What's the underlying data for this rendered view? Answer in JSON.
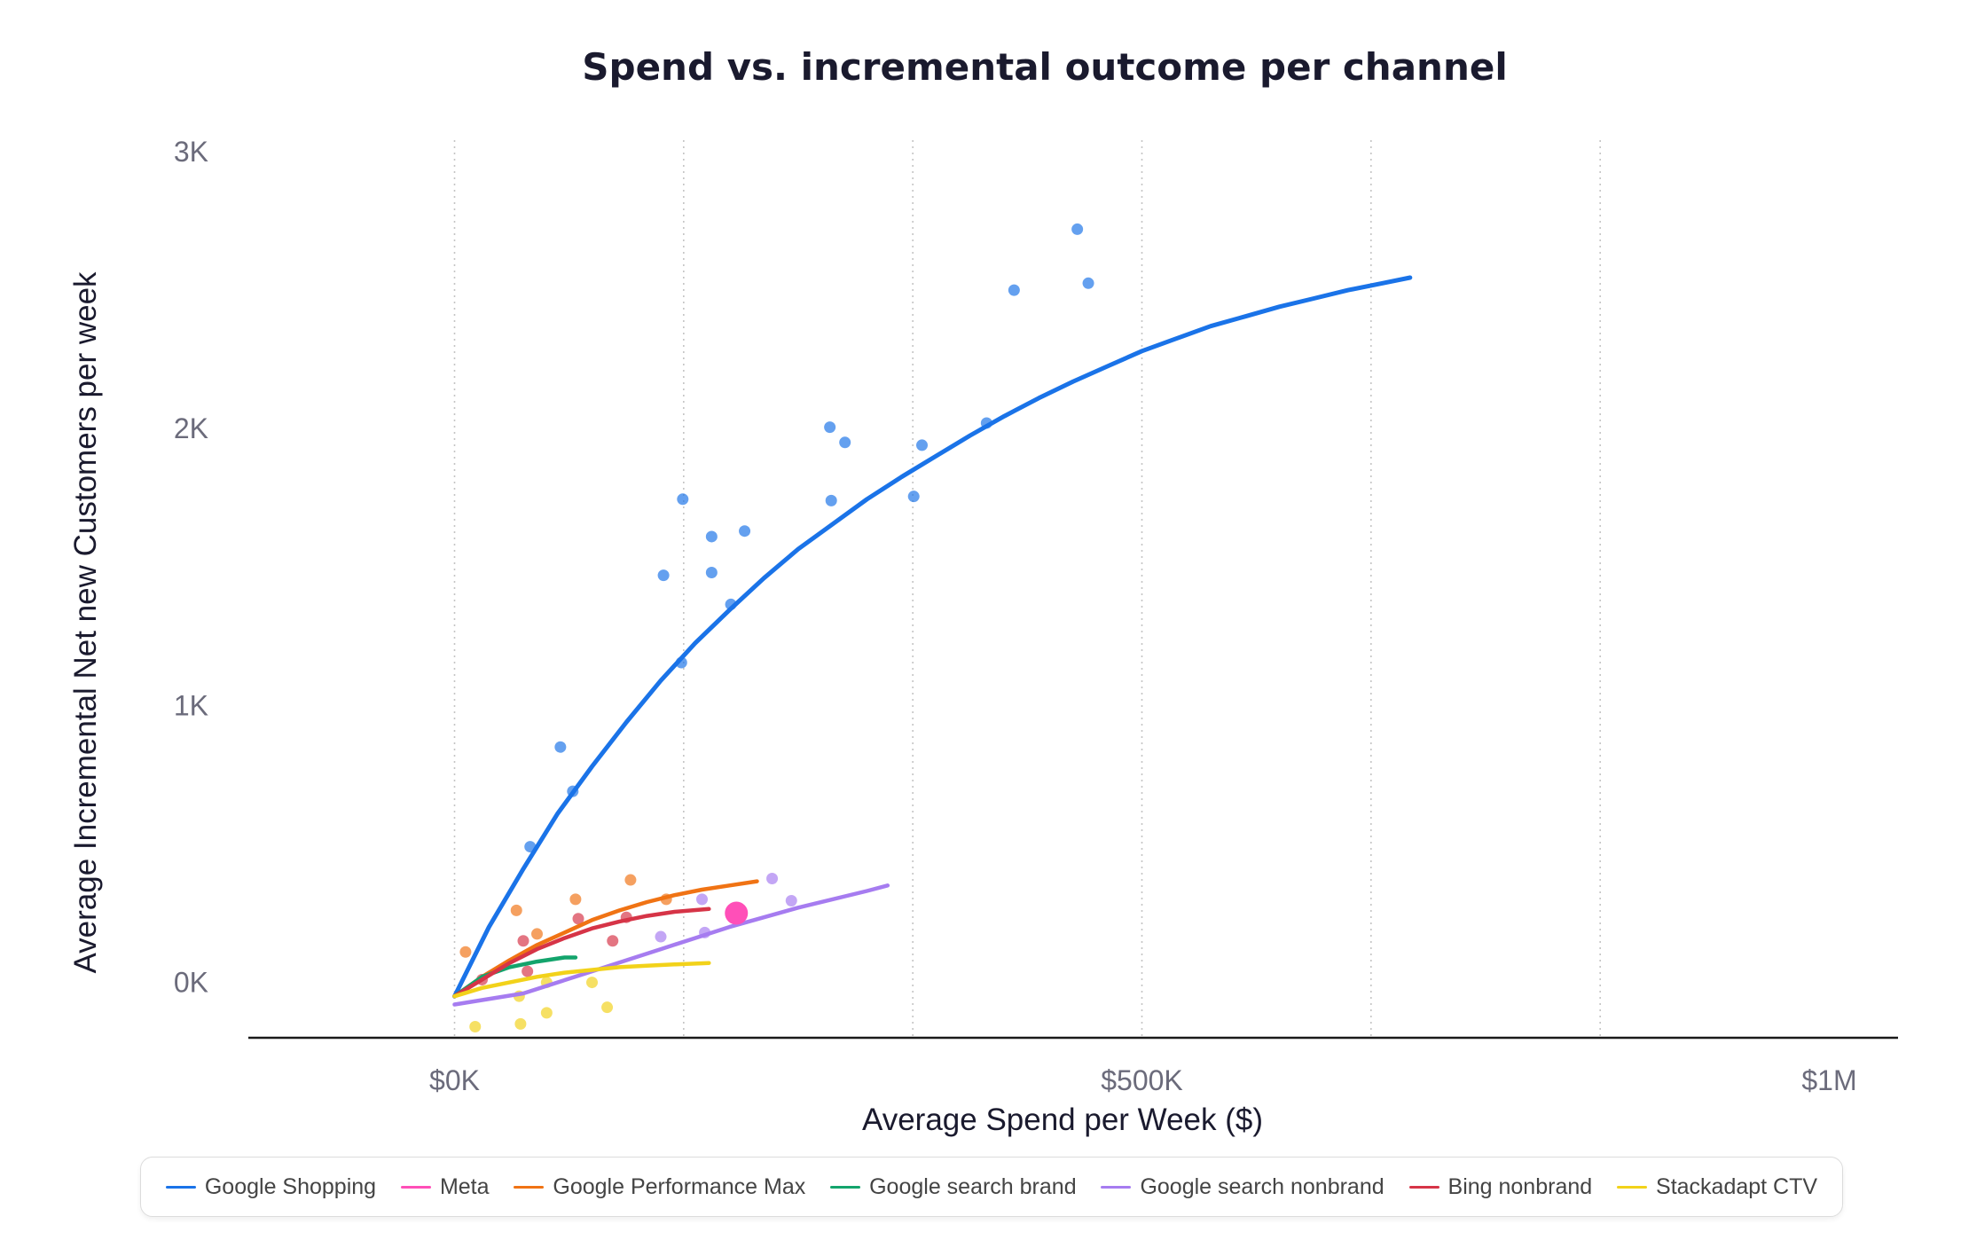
{
  "chart_data": {
    "type": "scatter",
    "title": "Spend vs. incremental outcome per channel",
    "xlabel": "Average Spend per Week ($)",
    "ylabel": "Average Incremental Net new Customers per week",
    "xlim": [
      -150000,
      1050000
    ],
    "ylim": [
      -200,
      3000
    ],
    "x_ticks": [
      {
        "value": 0,
        "label": "$0K"
      },
      {
        "value": 500000,
        "label": "$500K"
      },
      {
        "value": 1000000,
        "label": "$1M"
      }
    ],
    "y_ticks": [
      {
        "value": 0,
        "label": "0K"
      },
      {
        "value": 1000,
        "label": "1K"
      },
      {
        "value": 2000,
        "label": "2K"
      },
      {
        "value": 3000,
        "label": "3K"
      }
    ],
    "x_gridlines": [
      0,
      166667,
      333333,
      500000,
      666667,
      833333
    ],
    "grid": "vertical dotted",
    "legend_position": "bottom",
    "series": [
      {
        "name": "Google Shopping",
        "color": "#1a73e8",
        "curve": [
          [
            0,
            -50
          ],
          [
            25000,
            200
          ],
          [
            50000,
            410
          ],
          [
            75000,
            610
          ],
          [
            100000,
            780
          ],
          [
            125000,
            940
          ],
          [
            150000,
            1090
          ],
          [
            175000,
            1225
          ],
          [
            200000,
            1345
          ],
          [
            225000,
            1460
          ],
          [
            250000,
            1565
          ],
          [
            275000,
            1655
          ],
          [
            300000,
            1745
          ],
          [
            325000,
            1825
          ],
          [
            350000,
            1900
          ],
          [
            375000,
            1975
          ],
          [
            400000,
            2045
          ],
          [
            425000,
            2110
          ],
          [
            450000,
            2170
          ],
          [
            475000,
            2225
          ],
          [
            500000,
            2280
          ],
          [
            525000,
            2325
          ],
          [
            550000,
            2370
          ],
          [
            575000,
            2405
          ],
          [
            600000,
            2440
          ],
          [
            625000,
            2470
          ],
          [
            650000,
            2500
          ],
          [
            675000,
            2525
          ],
          [
            695000,
            2545
          ]
        ],
        "points": [
          [
            55000,
            490
          ],
          [
            77000,
            850
          ],
          [
            86000,
            690
          ],
          [
            152000,
            1470
          ],
          [
            165000,
            1155
          ],
          [
            166000,
            1745
          ],
          [
            187000,
            1610
          ],
          [
            187000,
            1480
          ],
          [
            201000,
            1365
          ],
          [
            211000,
            1630
          ],
          [
            273000,
            2005
          ],
          [
            274000,
            1740
          ],
          [
            284000,
            1950
          ],
          [
            334000,
            1755
          ],
          [
            340000,
            1940
          ],
          [
            387000,
            2020
          ],
          [
            407000,
            2500
          ],
          [
            453000,
            2720
          ],
          [
            461000,
            2525
          ]
        ]
      },
      {
        "name": "Meta",
        "color": "#ff4fb8",
        "curve": [],
        "points": [
          [
            205000,
            250
          ]
        ]
      },
      {
        "name": "Google Performance Max",
        "color": "#f07314",
        "curve": [
          [
            0,
            -50
          ],
          [
            20000,
            20
          ],
          [
            40000,
            80
          ],
          [
            60000,
            135
          ],
          [
            80000,
            180
          ],
          [
            100000,
            225
          ],
          [
            120000,
            260
          ],
          [
            140000,
            290
          ],
          [
            160000,
            315
          ],
          [
            180000,
            335
          ],
          [
            200000,
            350
          ],
          [
            220000,
            365
          ]
        ],
        "points": [
          [
            8000,
            110
          ],
          [
            45000,
            260
          ],
          [
            60000,
            175
          ],
          [
            88000,
            300
          ],
          [
            128000,
            370
          ],
          [
            154000,
            300
          ]
        ]
      },
      {
        "name": "Google search brand",
        "color": "#13a46c",
        "curve": [
          [
            0,
            -50
          ],
          [
            20000,
            20
          ],
          [
            40000,
            55
          ],
          [
            60000,
            75
          ],
          [
            80000,
            90
          ],
          [
            88000,
            90
          ]
        ],
        "points": []
      },
      {
        "name": "Google search nonbrand",
        "color": "#a67cf0",
        "curve": [
          [
            0,
            -80
          ],
          [
            50000,
            -40
          ],
          [
            100000,
            40
          ],
          [
            150000,
            120
          ],
          [
            200000,
            200
          ],
          [
            250000,
            270
          ],
          [
            300000,
            330
          ],
          [
            315000,
            350
          ]
        ],
        "points": [
          [
            150000,
            165
          ],
          [
            180000,
            300
          ],
          [
            182000,
            180
          ],
          [
            231000,
            375
          ],
          [
            245000,
            295
          ]
        ]
      },
      {
        "name": "Bing nonbrand",
        "color": "#d63447",
        "curve": [
          [
            0,
            -50
          ],
          [
            20000,
            10
          ],
          [
            40000,
            70
          ],
          [
            60000,
            120
          ],
          [
            80000,
            160
          ],
          [
            100000,
            195
          ],
          [
            120000,
            220
          ],
          [
            140000,
            240
          ],
          [
            160000,
            255
          ],
          [
            185000,
            265
          ]
        ],
        "points": [
          [
            20000,
            10
          ],
          [
            50000,
            150
          ],
          [
            53000,
            40
          ],
          [
            90000,
            230
          ],
          [
            115000,
            150
          ],
          [
            125000,
            235
          ]
        ]
      },
      {
        "name": "Stackadapt CTV",
        "color": "#f2d21a",
        "curve": [
          [
            0,
            -50
          ],
          [
            20000,
            -20
          ],
          [
            40000,
            0
          ],
          [
            60000,
            20
          ],
          [
            80000,
            35
          ],
          [
            100000,
            45
          ],
          [
            120000,
            55
          ],
          [
            140000,
            60
          ],
          [
            160000,
            65
          ],
          [
            185000,
            70
          ]
        ],
        "points": [
          [
            15000,
            -160
          ],
          [
            47000,
            -50
          ],
          [
            48000,
            -150
          ],
          [
            67000,
            -110
          ],
          [
            67000,
            0
          ],
          [
            100000,
            0
          ],
          [
            111000,
            -90
          ]
        ]
      }
    ]
  }
}
